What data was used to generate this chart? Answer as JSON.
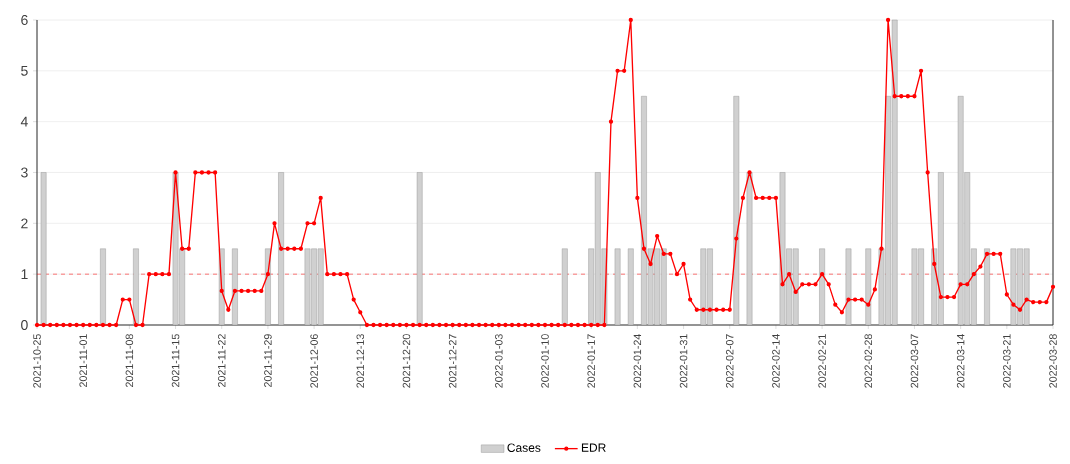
{
  "chart_data": {
    "type": "bar",
    "xlim": [
      "2021-10-25",
      "2022-03-28"
    ],
    "xticks": [
      "2021-10-25",
      "2021-11-01",
      "2021-11-08",
      "2021-11-15",
      "2021-11-22",
      "2021-11-29",
      "2021-12-06",
      "2021-12-13",
      "2021-12-20",
      "2021-12-27",
      "2022-01-03",
      "2022-01-10",
      "2022-01-17",
      "2022-01-24",
      "2022-01-31",
      "2022-02-07",
      "2022-02-14",
      "2022-02-21",
      "2022-02-28",
      "2022-03-07",
      "2022-03-14",
      "2022-03-21",
      "2022-03-28"
    ],
    "ylim": [
      0,
      6
    ],
    "yticks": [
      0,
      1,
      2,
      3,
      4,
      5,
      6
    ],
    "grid": "y",
    "legend": "bottom",
    "ref_lines": [
      {
        "axis": "y",
        "value": 1,
        "color": "#ff0000",
        "line_style": "dashed"
      }
    ],
    "series": [
      {
        "name": "Cases",
        "color": "#d0d0d0",
        "x": [
          "2021-10-26",
          "2021-11-04",
          "2021-11-09",
          "2021-11-15",
          "2021-11-16",
          "2021-11-22",
          "2021-11-24",
          "2021-11-29",
          "2021-12-01",
          "2021-12-05",
          "2021-12-06",
          "2021-12-07",
          "2021-12-22",
          "2022-01-13",
          "2022-01-17",
          "2022-01-18",
          "2022-01-19",
          "2022-01-21",
          "2022-01-23",
          "2022-01-25",
          "2022-01-26",
          "2022-01-27",
          "2022-01-28",
          "2022-02-03",
          "2022-02-04",
          "2022-02-08",
          "2022-02-10",
          "2022-02-15",
          "2022-02-16",
          "2022-02-17",
          "2022-02-21",
          "2022-02-25",
          "2022-02-28",
          "2022-03-02",
          "2022-03-03",
          "2022-03-04",
          "2022-03-07",
          "2022-03-08",
          "2022-03-10",
          "2022-03-11",
          "2022-03-14",
          "2022-03-15",
          "2022-03-16",
          "2022-03-18",
          "2022-03-22",
          "2022-03-23",
          "2022-03-24"
        ],
        "values": [
          3,
          1.5,
          1.5,
          3,
          1.5,
          1.5,
          1.5,
          1.5,
          3,
          1.5,
          1.5,
          1.5,
          3,
          1.5,
          1.5,
          3,
          1.5,
          1.5,
          1.5,
          4.5,
          1.5,
          1.5,
          1.5,
          1.5,
          1.5,
          4.5,
          3,
          3,
          1.5,
          1.5,
          1.5,
          1.5,
          1.5,
          1.5,
          4.5,
          6,
          1.5,
          1.5,
          1.5,
          3,
          4.5,
          3,
          1.5,
          1.5,
          1.5,
          1.5,
          1.5
        ]
      },
      {
        "name": "EDR",
        "type": "line",
        "color": "#ff0000",
        "marker": "circle",
        "line_style": "solid",
        "x": [
          "2021-10-25",
          "2021-10-26",
          "2021-10-27",
          "2021-10-28",
          "2021-10-29",
          "2021-10-30",
          "2021-10-31",
          "2021-11-01",
          "2021-11-02",
          "2021-11-03",
          "2021-11-04",
          "2021-11-05",
          "2021-11-06",
          "2021-11-07",
          "2021-11-08",
          "2021-11-09",
          "2021-11-10",
          "2021-11-11",
          "2021-11-12",
          "2021-11-13",
          "2021-11-14",
          "2021-11-15",
          "2021-11-16",
          "2021-11-17",
          "2021-11-18",
          "2021-11-19",
          "2021-11-20",
          "2021-11-21",
          "2021-11-22",
          "2021-11-23",
          "2021-11-24",
          "2021-11-25",
          "2021-11-26",
          "2021-11-27",
          "2021-11-28",
          "2021-11-29",
          "2021-11-30",
          "2021-12-01",
          "2021-12-02",
          "2021-12-03",
          "2021-12-04",
          "2021-12-05",
          "2021-12-06",
          "2021-12-07",
          "2021-12-08",
          "2021-12-09",
          "2021-12-10",
          "2021-12-11",
          "2021-12-12",
          "2021-12-13",
          "2021-12-14",
          "2021-12-15",
          "2021-12-16",
          "2021-12-17",
          "2021-12-18",
          "2021-12-19",
          "2021-12-20",
          "2021-12-21",
          "2021-12-22",
          "2021-12-23",
          "2021-12-24",
          "2021-12-25",
          "2021-12-26",
          "2021-12-27",
          "2021-12-28",
          "2021-12-29",
          "2021-12-30",
          "2021-12-31",
          "2022-01-01",
          "2022-01-02",
          "2022-01-03",
          "2022-01-04",
          "2022-01-05",
          "2022-01-06",
          "2022-01-07",
          "2022-01-08",
          "2022-01-09",
          "2022-01-10",
          "2022-01-11",
          "2022-01-12",
          "2022-01-13",
          "2022-01-14",
          "2022-01-15",
          "2022-01-16",
          "2022-01-17",
          "2022-01-18",
          "2022-01-19",
          "2022-01-20",
          "2022-01-21",
          "2022-01-22",
          "2022-01-23",
          "2022-01-24",
          "2022-01-25",
          "2022-01-26",
          "2022-01-27",
          "2022-01-28",
          "2022-01-29",
          "2022-01-30",
          "2022-01-31",
          "2022-02-01",
          "2022-02-02",
          "2022-02-03",
          "2022-02-04",
          "2022-02-05",
          "2022-02-06",
          "2022-02-07",
          "2022-02-08",
          "2022-02-09",
          "2022-02-10",
          "2022-02-11",
          "2022-02-12",
          "2022-02-13",
          "2022-02-14",
          "2022-02-15",
          "2022-02-16",
          "2022-02-17",
          "2022-02-18",
          "2022-02-19",
          "2022-02-20",
          "2022-02-21",
          "2022-02-22",
          "2022-02-23",
          "2022-02-24",
          "2022-02-25",
          "2022-02-26",
          "2022-02-27",
          "2022-02-28",
          "2022-03-01",
          "2022-03-02",
          "2022-03-03",
          "2022-03-04",
          "2022-03-05",
          "2022-03-06",
          "2022-03-07",
          "2022-03-08",
          "2022-03-09",
          "2022-03-10",
          "2022-03-11",
          "2022-03-12",
          "2022-03-13",
          "2022-03-14",
          "2022-03-15",
          "2022-03-16",
          "2022-03-17",
          "2022-03-18",
          "2022-03-19",
          "2022-03-20",
          "2022-03-21",
          "2022-03-22",
          "2022-03-23",
          "2022-03-24",
          "2022-03-25",
          "2022-03-26",
          "2022-03-27",
          "2022-03-28"
        ],
        "values": [
          0,
          0,
          0,
          0,
          0,
          0,
          0,
          0,
          0,
          0,
          0,
          0,
          0,
          0.5,
          0.5,
          0,
          0,
          1,
          1,
          1,
          1,
          3,
          1.5,
          1.5,
          3,
          3,
          3,
          3,
          0.67,
          0.3,
          0.67,
          0.67,
          0.67,
          0.67,
          0.67,
          1,
          2,
          1.5,
          1.5,
          1.5,
          1.5,
          2,
          2,
          2.5,
          1,
          1,
          1,
          1,
          0.5,
          0.25,
          0,
          0,
          0,
          0,
          0,
          0,
          0,
          0,
          0,
          0,
          0,
          0,
          0,
          0,
          0,
          0,
          0,
          0,
          0,
          0,
          0,
          0,
          0,
          0,
          0,
          0,
          0,
          0,
          0,
          0,
          0,
          0,
          0,
          0,
          0,
          0,
          0,
          4,
          5,
          5,
          6,
          2.5,
          1.5,
          1.2,
          1.75,
          1.4,
          1.4,
          1,
          1.2,
          0.5,
          0.3,
          0.3,
          0.3,
          0.3,
          0.3,
          0.3,
          1.7,
          2.5,
          3,
          2.5,
          2.5,
          2.5,
          2.5,
          0.8,
          1,
          0.65,
          0.8,
          0.8,
          0.8,
          1,
          0.8,
          0.4,
          0.25,
          0.5,
          0.5,
          0.5,
          0.4,
          0.7,
          1.5,
          6,
          4.5,
          4.5,
          4.5,
          4.5,
          5,
          3,
          1.2,
          0.55,
          0.55,
          0.55,
          0.8,
          0.8,
          1,
          1.15,
          1.4,
          1.4,
          1.4,
          0.6,
          0.4,
          0.3,
          0.5,
          0.45,
          0.45,
          0.45,
          0.75
        ]
      }
    ]
  }
}
